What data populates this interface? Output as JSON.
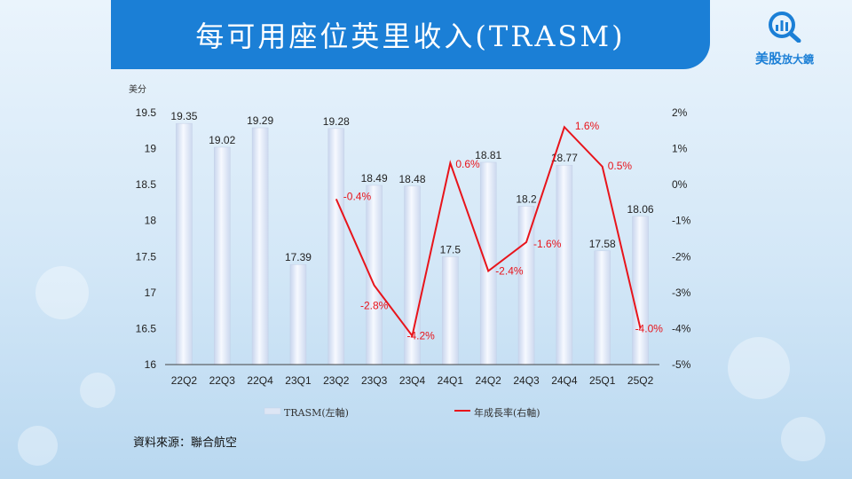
{
  "title": "每可用座位英里收入(TRASM)",
  "logo": {
    "name_main": "美股",
    "name_sub": "放大鏡"
  },
  "unit": "美分",
  "source": "資料來源：聯合航空",
  "colors": {
    "title_bg": "#1b7fd6",
    "bar": "#dde6f5",
    "line": "#e8141b"
  },
  "chart_data": {
    "type": "bar+line",
    "categories": [
      "22Q2",
      "22Q3",
      "22Q4",
      "23Q1",
      "23Q2",
      "23Q3",
      "23Q4",
      "24Q1",
      "24Q2",
      "24Q3",
      "24Q4",
      "25Q1",
      "25Q2"
    ],
    "series": [
      {
        "name": "TRASM(左軸)",
        "type": "bar",
        "axis": "left",
        "values": [
          19.35,
          19.02,
          19.29,
          17.39,
          19.28,
          18.49,
          18.48,
          17.5,
          18.81,
          18.2,
          18.77,
          17.58,
          18.06
        ],
        "labels": [
          "19.35",
          "19.02",
          "19.29",
          "17.39",
          "19.28",
          "18.49",
          "18.48",
          "17.5",
          "18.81",
          "18.2",
          "18.77",
          "17.58",
          "18.06"
        ]
      },
      {
        "name": "年成長率(右軸)",
        "type": "line",
        "axis": "right",
        "values": [
          null,
          null,
          null,
          null,
          -0.4,
          -2.8,
          -4.2,
          0.6,
          -2.4,
          -1.6,
          1.6,
          0.5,
          -4.0
        ],
        "labels": [
          null,
          null,
          null,
          null,
          "-0.4%",
          "-2.8%",
          "-4.2%",
          "0.6%",
          "-2.4%",
          "-1.6%",
          "1.6%",
          "0.5%",
          "-4.0%"
        ]
      }
    ],
    "left_axis": {
      "min": 16,
      "max": 19.5,
      "ticks": [
        "16",
        "16.5",
        "17",
        "17.5",
        "18",
        "18.5",
        "19",
        "19.5"
      ]
    },
    "right_axis": {
      "min": -5,
      "max": 2,
      "ticks": [
        "-5%",
        "-4%",
        "-3%",
        "-2%",
        "-1%",
        "0%",
        "1%",
        "2%"
      ]
    }
  }
}
